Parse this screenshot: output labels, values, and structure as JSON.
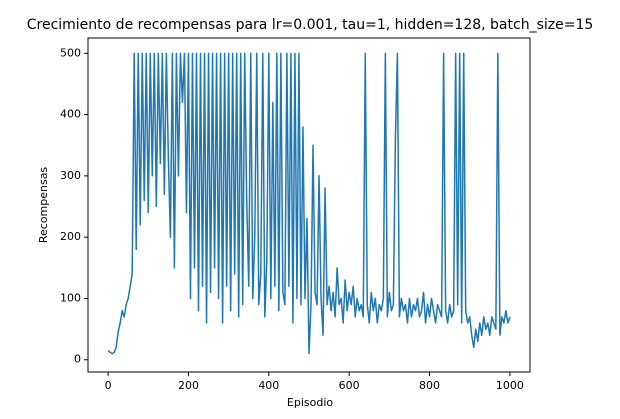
{
  "chart_data": {
    "type": "line",
    "title": "Crecimiento de recompensas para lr=0.001, tau=1, hidden=128, batch_size=15",
    "xlabel": "Episodio",
    "ylabel": "Recompensas",
    "xlim": [
      -50,
      1050
    ],
    "ylim": [
      -20,
      525
    ],
    "xticks": [
      0,
      200,
      400,
      600,
      800,
      1000
    ],
    "yticks": [
      0,
      100,
      200,
      300,
      400,
      500
    ],
    "x": [
      0,
      5,
      10,
      15,
      20,
      25,
      30,
      35,
      40,
      45,
      50,
      55,
      60,
      65,
      70,
      75,
      80,
      85,
      90,
      95,
      100,
      105,
      110,
      115,
      120,
      125,
      130,
      135,
      140,
      145,
      150,
      155,
      160,
      165,
      170,
      175,
      180,
      185,
      190,
      195,
      200,
      205,
      210,
      215,
      220,
      225,
      230,
      235,
      240,
      245,
      250,
      255,
      260,
      265,
      270,
      275,
      280,
      285,
      290,
      295,
      300,
      305,
      310,
      315,
      320,
      325,
      330,
      335,
      340,
      345,
      350,
      355,
      360,
      365,
      370,
      375,
      380,
      385,
      390,
      395,
      400,
      405,
      410,
      415,
      420,
      425,
      430,
      435,
      440,
      445,
      450,
      455,
      460,
      465,
      470,
      475,
      480,
      485,
      490,
      495,
      500,
      505,
      510,
      515,
      520,
      525,
      530,
      535,
      540,
      545,
      550,
      555,
      560,
      565,
      570,
      575,
      580,
      585,
      590,
      595,
      600,
      605,
      610,
      615,
      620,
      625,
      630,
      635,
      640,
      645,
      650,
      655,
      660,
      665,
      670,
      675,
      680,
      685,
      690,
      695,
      700,
      705,
      710,
      715,
      720,
      725,
      730,
      735,
      740,
      745,
      750,
      755,
      760,
      765,
      770,
      775,
      780,
      785,
      790,
      795,
      800,
      805,
      810,
      815,
      820,
      825,
      830,
      835,
      840,
      845,
      850,
      855,
      860,
      865,
      870,
      875,
      880,
      885,
      890,
      895,
      900,
      905,
      910,
      915,
      920,
      925,
      930,
      935,
      940,
      945,
      950,
      955,
      960,
      965,
      970,
      975,
      980,
      985,
      990,
      995,
      1000
    ],
    "series": [
      {
        "name": "Recompensas",
        "color": "#1f77b4",
        "values": [
          15,
          12,
          10,
          12,
          20,
          45,
          60,
          80,
          70,
          90,
          100,
          120,
          140,
          500,
          180,
          500,
          220,
          500,
          260,
          500,
          240,
          500,
          300,
          500,
          250,
          500,
          320,
          500,
          270,
          500,
          330,
          200,
          500,
          150,
          500,
          300,
          500,
          420,
          500,
          240,
          500,
          100,
          500,
          150,
          500,
          80,
          500,
          120,
          500,
          60,
          500,
          110,
          500,
          150,
          500,
          100,
          500,
          60,
          500,
          120,
          500,
          80,
          500,
          140,
          500,
          70,
          500,
          90,
          500,
          260,
          120,
          500,
          100,
          200,
          500,
          90,
          140,
          500,
          70,
          160,
          500,
          100,
          420,
          120,
          500,
          80,
          500,
          110,
          90,
          500,
          120,
          500,
          60,
          500,
          100,
          500,
          90,
          380,
          100,
          230,
          10,
          90,
          350,
          110,
          90,
          300,
          100,
          40,
          280,
          90,
          120,
          80,
          110,
          70,
          150,
          90,
          100,
          60,
          130,
          80,
          110,
          90,
          120,
          70,
          100,
          80,
          90,
          70,
          500,
          90,
          60,
          110,
          80,
          100,
          60,
          90,
          80,
          100,
          500,
          70,
          110,
          80,
          90,
          360,
          500,
          70,
          100,
          80,
          90,
          60,
          100,
          70,
          90,
          80,
          100,
          70,
          80,
          110,
          60,
          90,
          70,
          100,
          80,
          60,
          90,
          80,
          70,
          500,
          80,
          60,
          90,
          70,
          80,
          500,
          90,
          500,
          60,
          500,
          80,
          60,
          70,
          40,
          20,
          50,
          30,
          60,
          40,
          70,
          50,
          60,
          40,
          70,
          60,
          50,
          500,
          40,
          70,
          60,
          80,
          60,
          70
        ]
      }
    ]
  }
}
